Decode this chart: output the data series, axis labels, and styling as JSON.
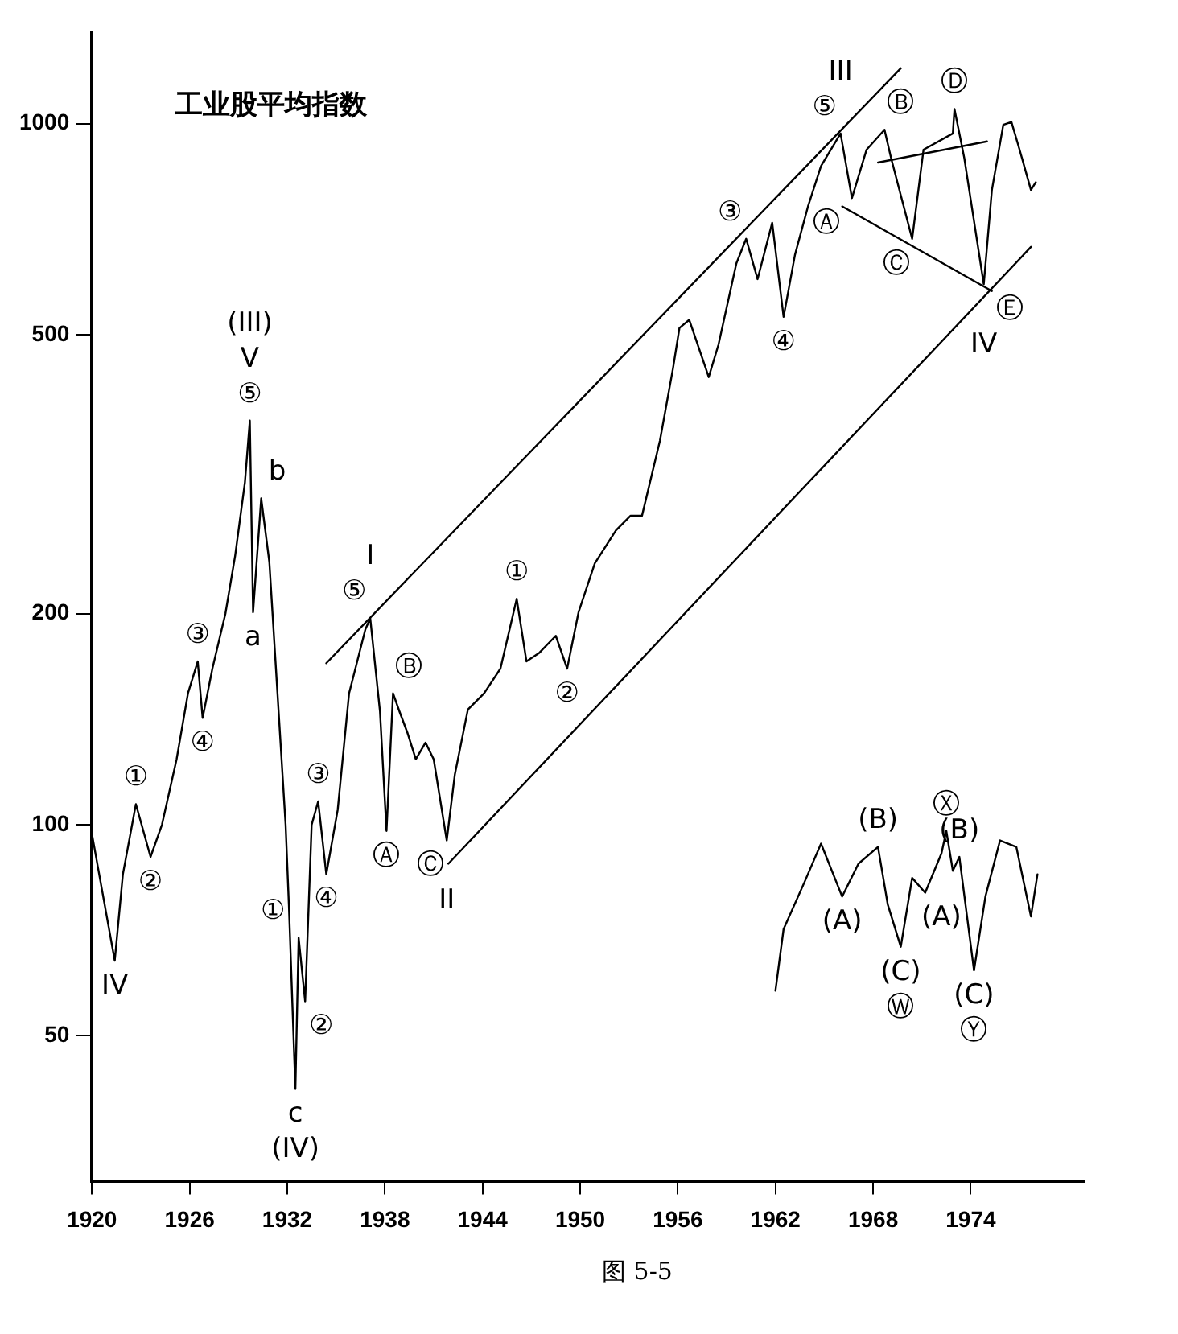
{
  "chart_data": {
    "type": "line",
    "title": "工业股平均指数",
    "log": "y",
    "grid": false,
    "legend": false,
    "xlim": [
      1920,
      1981
    ],
    "ylim": [
      31,
      1350
    ],
    "xticks": [
      1920,
      1926,
      1932,
      1938,
      1944,
      1950,
      1956,
      1962,
      1968,
      1974
    ],
    "yticks": [
      50,
      100,
      200,
      500,
      1000
    ],
    "series": [
      {
        "color": "#000000",
        "x": [
          1920,
          1921.4,
          1921.9,
          1922.7,
          1923.6,
          1924.3,
          1925.2,
          1925.9,
          1926.5,
          1926.8,
          1927.4,
          1928.2,
          1928.8,
          1929.4,
          1929.7,
          1929.9,
          1930.4,
          1930.9,
          1931.4,
          1931.9,
          1932.1,
          1932.5,
          1932.7,
          1933.1,
          1933.5,
          1933.9,
          1934.4,
          1935.1,
          1935.8,
          1936.8,
          1937.1,
          1937.7,
          1938.1,
          1938.5,
          1938.9,
          1939.4,
          1939.9,
          1940.5,
          1941,
          1941.8,
          1942.3,
          1943.1,
          1944.1,
          1945.1,
          1946.1,
          1946.7,
          1947.5,
          1948.5,
          1949.2,
          1949.9,
          1950.9,
          1952.2,
          1953.1,
          1953.8,
          1954.9,
          1955.7,
          1956.1,
          1956.7,
          1957.9,
          1958.5,
          1959.6,
          1960.2,
          1960.9,
          1961.8,
          1962.5,
          1963.2,
          1964,
          1964.8,
          1966,
          1966.7,
          1967.6,
          1968.7,
          1969.1,
          1970.4,
          1971.1,
          1972.9,
          1973,
          1973.6,
          1974.8,
          1975.3,
          1976,
          1976.5,
          1977,
          1977.7,
          1978
        ],
        "values": [
          97,
          64,
          85,
          107,
          90,
          100,
          124,
          154,
          171,
          142,
          167,
          200,
          242,
          308,
          377,
          201,
          292,
          237,
          154,
          100,
          77,
          42,
          69,
          56,
          100,
          108,
          85,
          105,
          154,
          190,
          197,
          145,
          98,
          154,
          145,
          135,
          124,
          131,
          124,
          95,
          118,
          146,
          154,
          167,
          210,
          171,
          176,
          186,
          167,
          201,
          236,
          263,
          276,
          276,
          353,
          447,
          511,
          525,
          435,
          484,
          632,
          685,
          600,
          722,
          530,
          650,
          762,
          870,
          968,
          783,
          918,
          980,
          894,
          685,
          918,
          968,
          1049,
          894,
          590,
          804,
          996,
          1005,
          918,
          804,
          825
        ]
      },
      {
        "color": "#000000",
        "x": [
          1962,
          1962.5,
          1963.8,
          1964.8,
          1966.1,
          1967.1,
          1968.3,
          1968.9,
          1969.7,
          1970.4,
          1971.2,
          1972.2,
          1972.5,
          1972.9,
          1973.3,
          1974.2,
          1974.9,
          1975.8,
          1976.8,
          1977.7,
          1978.1
        ],
        "values": [
          58,
          71,
          83,
          94,
          79,
          88,
          93,
          77,
          67,
          84,
          80,
          91,
          98,
          86,
          90,
          62,
          79,
          95,
          93,
          74,
          85
        ]
      },
      {
        "color": "#000000",
        "x": [
          1934.4,
          1969.7
        ],
        "values": [
          170,
          1199
        ]
      },
      {
        "color": "#000000",
        "x": [
          1941.9,
          1977.7
        ],
        "values": [
          88,
          667
        ]
      },
      {
        "color": "#000000",
        "x": [
          1968.3,
          1975
        ],
        "values": [
          880,
          943
        ]
      },
      {
        "color": "#000000",
        "x": [
          1966.1,
          1975.3
        ],
        "values": [
          762,
          577
        ]
      }
    ],
    "annotations": [
      {
        "text": "IV",
        "x": 1921.4,
        "y": 64
      },
      {
        "text": "①",
        "x": 1922.7,
        "y": 107
      },
      {
        "text": "②",
        "x": 1923.6,
        "y": 90
      },
      {
        "text": "③",
        "x": 1926.5,
        "y": 171
      },
      {
        "text": "④",
        "x": 1926.8,
        "y": 142
      },
      {
        "text": "(III)",
        "x": 1929.7,
        "y": 377
      },
      {
        "text": "V",
        "x": 1929.7,
        "y": 377
      },
      {
        "text": "⑤",
        "x": 1929.7,
        "y": 377
      },
      {
        "text": "b",
        "x": 1930.4,
        "y": 292
      },
      {
        "text": "a",
        "x": 1929.9,
        "y": 201
      },
      {
        "text": "c",
        "x": 1932.5,
        "y": 42
      },
      {
        "text": "(IV)",
        "x": 1932.5,
        "y": 42
      },
      {
        "text": "①",
        "x": 1932.7,
        "y": 69
      },
      {
        "text": "②",
        "x": 1933.1,
        "y": 56
      },
      {
        "text": "③",
        "x": 1933.9,
        "y": 108
      },
      {
        "text": "④",
        "x": 1934.4,
        "y": 85
      },
      {
        "text": "I",
        "x": 1937.1,
        "y": 197
      },
      {
        "text": "⑤",
        "x": 1937.1,
        "y": 197
      },
      {
        "text": "Ⓑ",
        "x": 1938.5,
        "y": 154
      },
      {
        "text": "Ⓐ",
        "x": 1938.1,
        "y": 98
      },
      {
        "text": "Ⓒ",
        "x": 1941.8,
        "y": 95
      },
      {
        "text": "II",
        "x": 1941.8,
        "y": 95
      },
      {
        "text": "①",
        "x": 1946.1,
        "y": 210
      },
      {
        "text": "②",
        "x": 1949.2,
        "y": 167
      },
      {
        "text": "③",
        "x": 1960.2,
        "y": 685
      },
      {
        "text": "④",
        "x": 1962.5,
        "y": 530
      },
      {
        "text": "III",
        "x": 1966,
        "y": 968
      },
      {
        "text": "⑤",
        "x": 1966,
        "y": 968
      },
      {
        "text": "Ⓑ",
        "x": 1968.7,
        "y": 980
      },
      {
        "text": "Ⓓ",
        "x": 1973,
        "y": 1049
      },
      {
        "text": "Ⓐ",
        "x": 1966.7,
        "y": 783
      },
      {
        "text": "Ⓒ",
        "x": 1970.4,
        "y": 685
      },
      {
        "text": "Ⓔ",
        "x": 1974.8,
        "y": 590
      },
      {
        "text": "IV",
        "x": 1974.8,
        "y": 590
      },
      {
        "text": "(A)",
        "x": 1966.1,
        "y": 79
      },
      {
        "text": "(B)",
        "x": 1968.3,
        "y": 93
      },
      {
        "text": "(C)",
        "x": 1969.7,
        "y": 67
      },
      {
        "text": "Ⓦ",
        "x": 1969.7,
        "y": 67
      },
      {
        "text": "(A)",
        "x": 1971.2,
        "y": 80
      },
      {
        "text": "Ⓧ",
        "x": 1972.5,
        "y": 98
      },
      {
        "text": "(B)",
        "x": 1973.3,
        "y": 90
      },
      {
        "text": "(C)",
        "x": 1974.2,
        "y": 62
      },
      {
        "text": "Ⓨ",
        "x": 1974.2,
        "y": 62
      },
      "图 5-5"
    ]
  }
}
